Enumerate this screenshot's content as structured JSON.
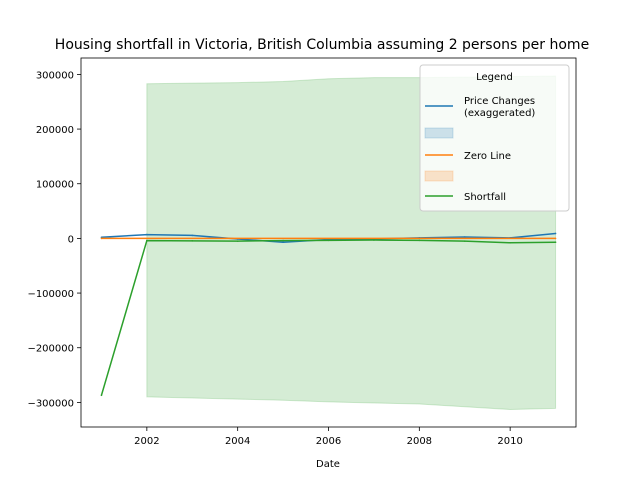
{
  "chart_data": {
    "type": "line",
    "title": "Housing shortfall in Victoria, British Columbia assuming 2 persons per home",
    "xlabel": "Date",
    "ylabel": "",
    "xlim": [
      2000.55,
      2011.45
    ],
    "ylim": [
      -345000,
      330000
    ],
    "xticks": [
      2002,
      2004,
      2006,
      2008,
      2010
    ],
    "yticks": [
      -300000,
      -200000,
      -100000,
      0,
      100000,
      200000,
      300000
    ],
    "legend": {
      "title": "Legend",
      "location": "upper right",
      "entries": [
        {
          "label": "Price Changes\n(exaggerated)",
          "kind": "line",
          "color": "#1f77b4"
        },
        {
          "label": "",
          "kind": "patch",
          "color": "#1f77b4"
        },
        {
          "label": "Zero Line",
          "kind": "line",
          "color": "#ff7f0e"
        },
        {
          "label": "",
          "kind": "patch",
          "color": "#ff7f0e"
        },
        {
          "label": "Shortfall",
          "kind": "line",
          "color": "#2ca02c"
        }
      ]
    },
    "bands": [
      {
        "color": "#2ca02c",
        "x": [
          2002,
          2003,
          2004,
          2005,
          2006,
          2007,
          2008,
          2009,
          2010,
          2011
        ],
        "upper": [
          283000,
          284000,
          285000,
          287000,
          292000,
          294000,
          294000,
          295000,
          296000,
          297000
        ],
        "lower": [
          -290000,
          -292000,
          -294000,
          -296000,
          -299000,
          -301000,
          -303000,
          -308000,
          -313000,
          -311000
        ]
      }
    ],
    "series": [
      {
        "name": "Price Changes\n(exaggerated)",
        "color": "#1f77b4",
        "x": [
          2001,
          2002,
          2003,
          2004,
          2005,
          2006,
          2007,
          2008,
          2009,
          2010,
          2011
        ],
        "y": [
          2000,
          7000,
          5500,
          -1000,
          -7000,
          -2000,
          -1000,
          1000,
          2500,
          1000,
          9000
        ]
      },
      {
        "name": "Zero Line",
        "color": "#ff7f0e",
        "x": [
          2001,
          2011
        ],
        "y": [
          0,
          0
        ]
      },
      {
        "name": "Shortfall",
        "color": "#2ca02c",
        "x": [
          2001,
          2002,
          2003,
          2004,
          2005,
          2006,
          2007,
          2008,
          2009,
          2010,
          2011
        ],
        "y": [
          -287000,
          -4000,
          -4500,
          -5000,
          -4000,
          -3500,
          -3000,
          -3500,
          -5000,
          -8000,
          -7000
        ]
      }
    ]
  }
}
